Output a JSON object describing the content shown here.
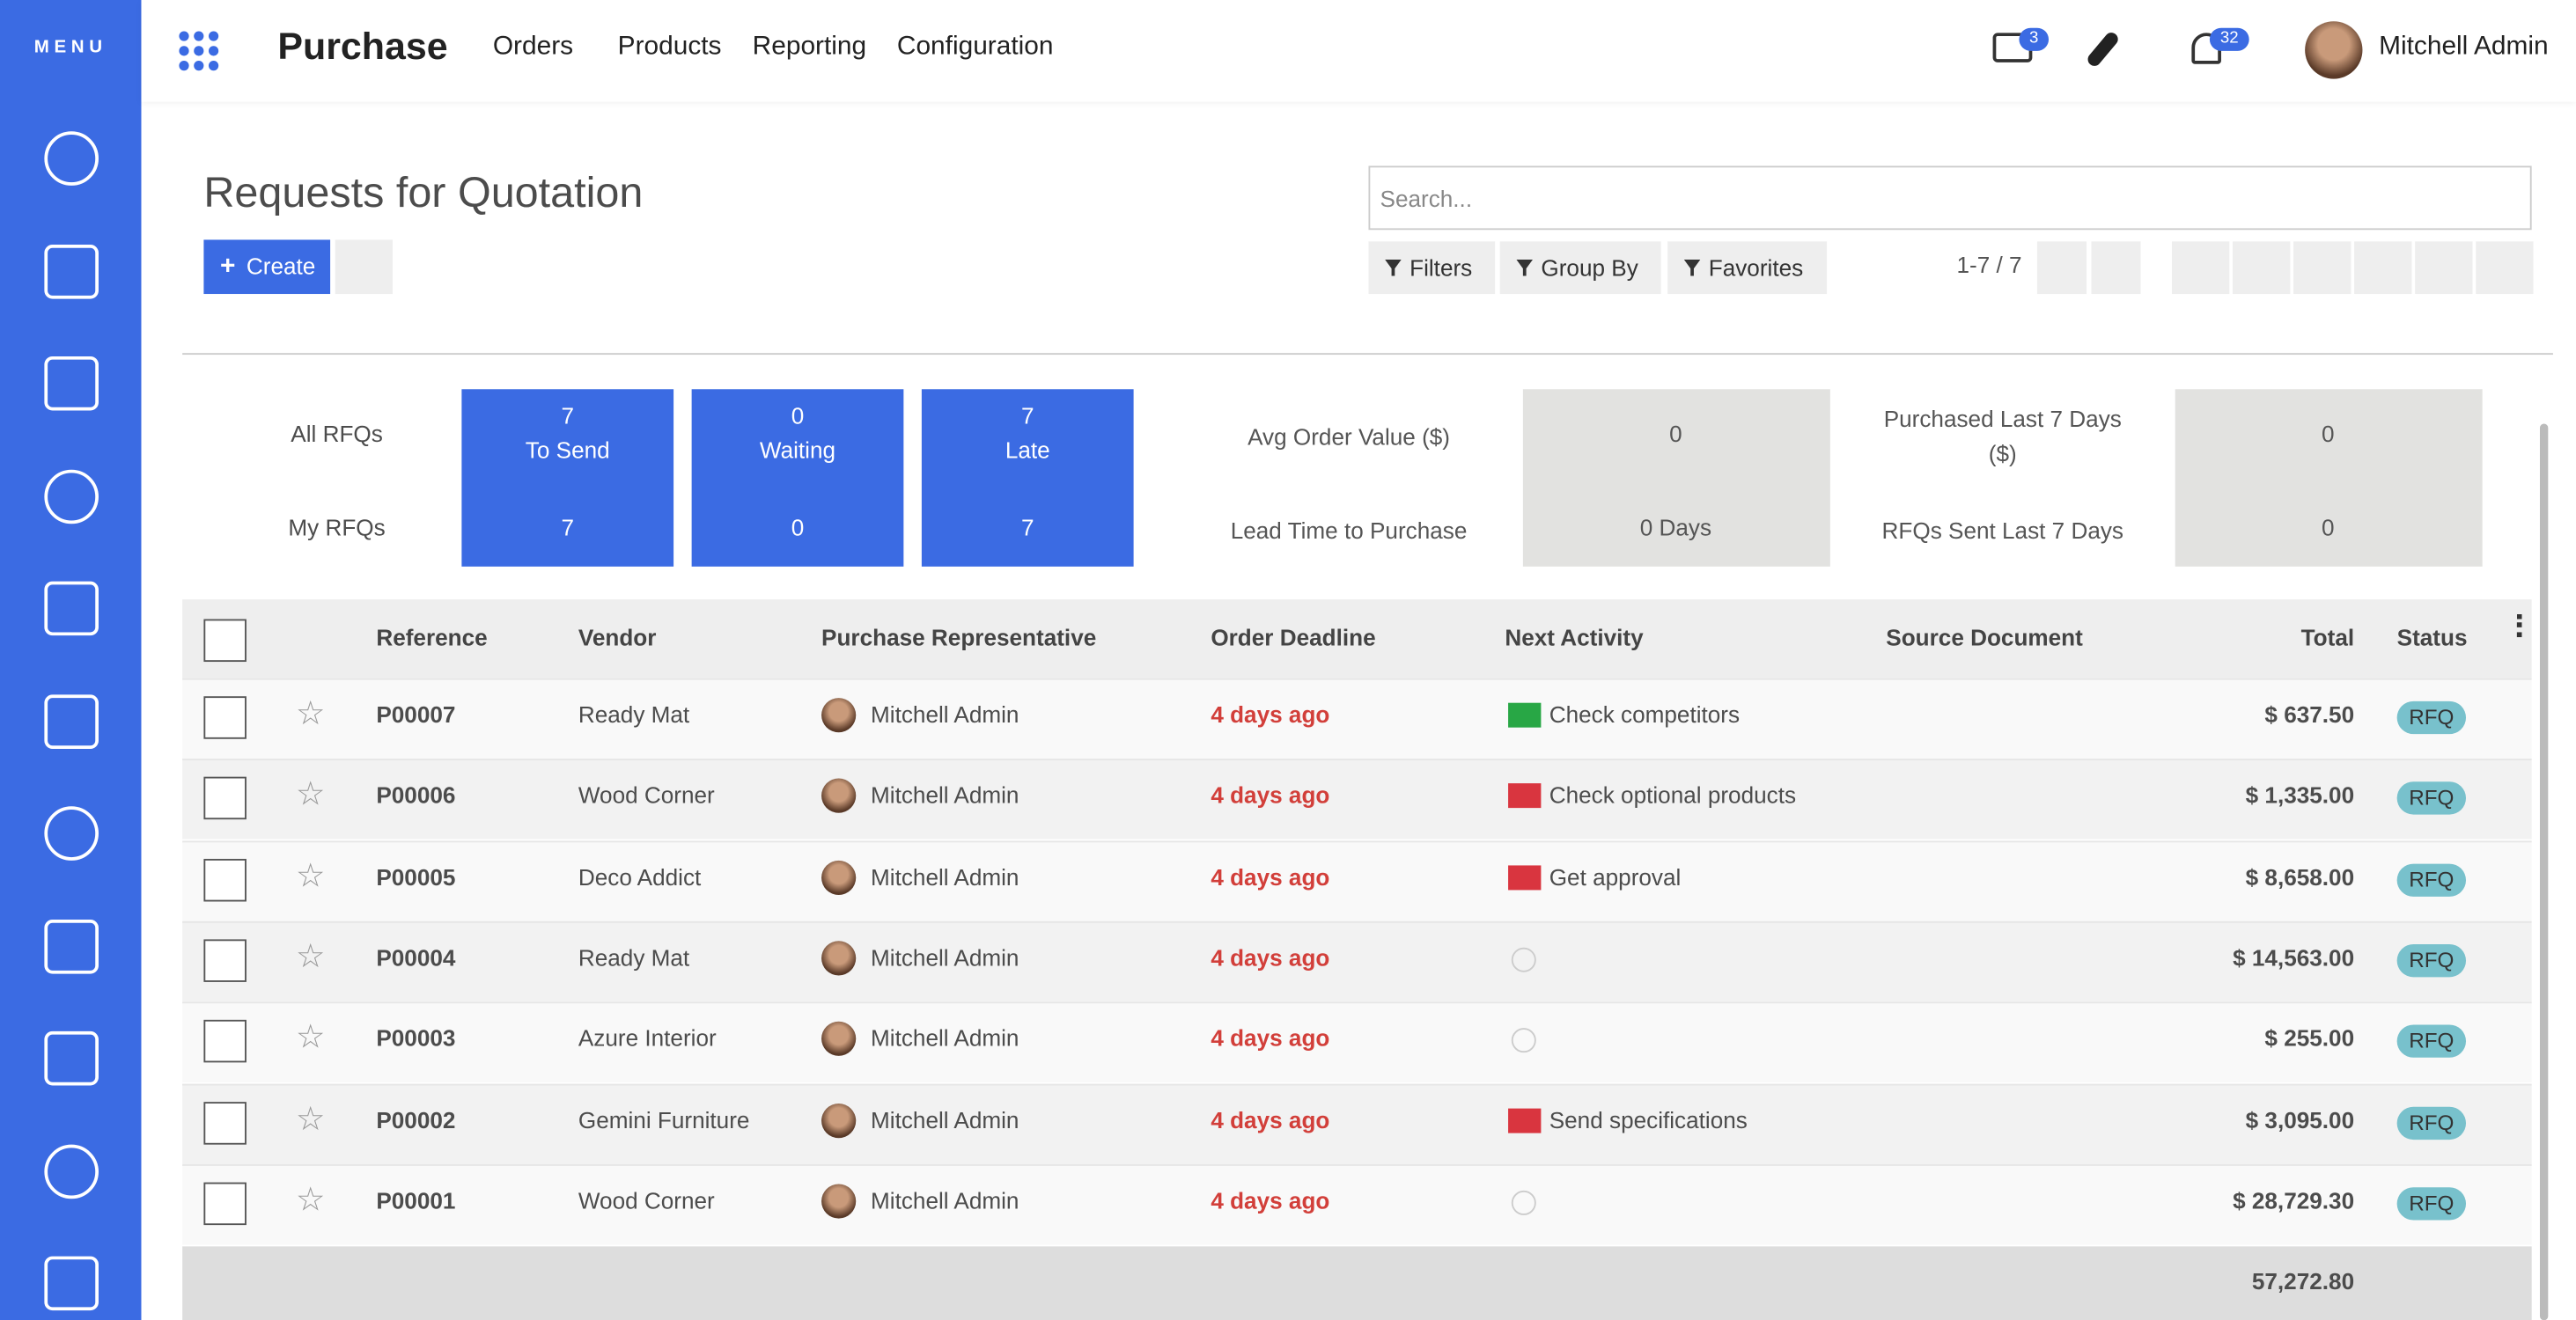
{
  "sidebar": {
    "menu": "MENU"
  },
  "navbar": {
    "app": "Purchase",
    "menus": [
      "Orders",
      "Products",
      "Reporting",
      "Configuration"
    ],
    "messages_count": "3",
    "notifications_count": "32",
    "user": "Mitchell Admin"
  },
  "control_panel": {
    "title": "Requests for Quotation",
    "create": "Create",
    "search_placeholder": "Search...",
    "filters": "Filters",
    "group_by": "Group By",
    "favorites": "Favorites",
    "pager": "1-7 / 7"
  },
  "dashboard": {
    "all_rfqs": "All RFQs",
    "my_rfqs": "My RFQs",
    "tiles": [
      {
        "all": "7",
        "label": "To Send",
        "my": "7"
      },
      {
        "all": "0",
        "label": "Waiting",
        "my": "0"
      },
      {
        "all": "7",
        "label": "Late",
        "my": "7"
      }
    ],
    "stats": [
      {
        "label": "Avg Order Value ($)",
        "value": "0"
      },
      {
        "label": "Lead Time to Purchase",
        "value": "0  Days"
      },
      {
        "label": "Purchased Last 7 Days ($)",
        "value": "0"
      },
      {
        "label": "RFQs Sent Last 7 Days",
        "value": "0"
      }
    ]
  },
  "table": {
    "columns": [
      "Reference",
      "Vendor",
      "Purchase Representative",
      "Order Deadline",
      "Next Activity",
      "Source Document",
      "Total",
      "Status"
    ],
    "rows": [
      {
        "reference": "P00007",
        "vendor": "Ready Mat",
        "representative": "Mitchell Admin",
        "deadline": "4 days ago",
        "activity": "Check competitors",
        "activity_color": "#28a745",
        "total": "$ 637.50",
        "status": "RFQ"
      },
      {
        "reference": "P00006",
        "vendor": "Wood Corner",
        "representative": "Mitchell Admin",
        "deadline": "4 days ago",
        "activity": "Check optional products",
        "activity_color": "#d9353f",
        "total": "$ 1,335.00",
        "status": "RFQ"
      },
      {
        "reference": "P00005",
        "vendor": "Deco Addict",
        "representative": "Mitchell Admin",
        "deadline": "4 days ago",
        "activity": "Get approval",
        "activity_color": "#d9353f",
        "total": "$ 8,658.00",
        "status": "RFQ"
      },
      {
        "reference": "P00004",
        "vendor": "Ready Mat",
        "representative": "Mitchell Admin",
        "deadline": "4 days ago",
        "total": "$ 14,563.00",
        "status": "RFQ"
      },
      {
        "reference": "P00003",
        "vendor": "Azure Interior",
        "representative": "Mitchell Admin",
        "deadline": "4 days ago",
        "total": "$ 255.00",
        "status": "RFQ"
      },
      {
        "reference": "P00002",
        "vendor": "Gemini Furniture",
        "representative": "Mitchell Admin",
        "deadline": "4 days ago",
        "activity": "Send specifications",
        "activity_color": "#d9353f",
        "total": "$ 3,095.00",
        "status": "RFQ"
      },
      {
        "reference": "P00001",
        "vendor": "Wood Corner",
        "representative": "Mitchell Admin",
        "deadline": "4 days ago",
        "total": "$ 28,729.30",
        "status": "RFQ"
      }
    ],
    "footer_total": "57,272.80"
  }
}
